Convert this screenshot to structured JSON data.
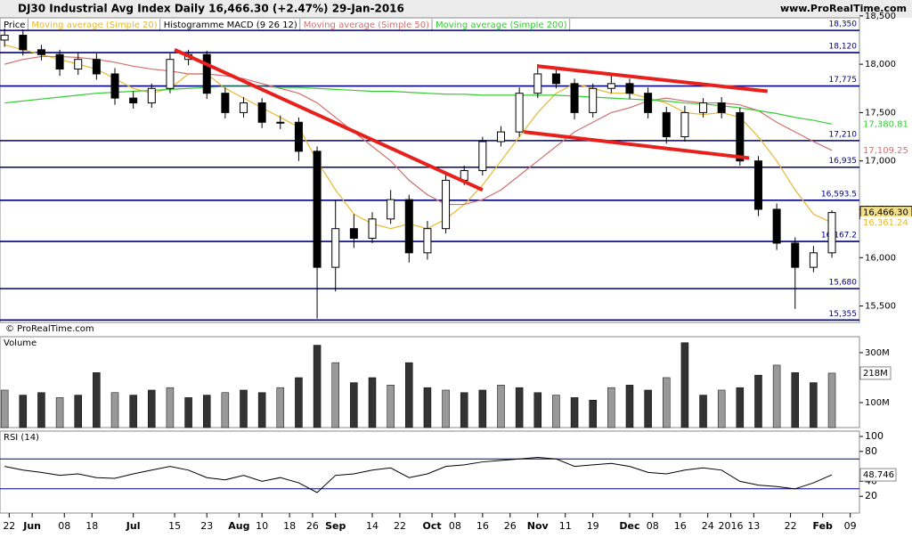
{
  "chart_data": [
    {
      "type": "candlestick",
      "title": "DJ30 Industrial Avg Index  Daily  16,466.30 (+2.47%)  29-Jan-2016",
      "site": "www.ProRealTime.com",
      "source": "© ProRealTime.com",
      "price_label": "Price",
      "macd_label": "Histogramme MACD (9 26 12)",
      "x": [
        0,
        4,
        8,
        12,
        16,
        20,
        24,
        28,
        32,
        36,
        40,
        44,
        48,
        52,
        56,
        60,
        64,
        68,
        72,
        76,
        80,
        84,
        88,
        92,
        96,
        100,
        104,
        108,
        112,
        116,
        120,
        124,
        128,
        132,
        136,
        140,
        144,
        148,
        152,
        156,
        160,
        164,
        168,
        172,
        176,
        180
      ],
      "open": [
        18250,
        18300,
        18150,
        18100,
        17950,
        18050,
        17900,
        17650,
        17600,
        17750,
        18050,
        18100,
        17700,
        17500,
        17600,
        17400,
        17400,
        17100,
        15900,
        16300,
        16200,
        16400,
        16600,
        16050,
        16300,
        16800,
        16900,
        17200,
        17300,
        17700,
        17900,
        17800,
        17500,
        17750,
        17800,
        17700,
        17500,
        17250,
        17500,
        17600,
        17500,
        17000,
        16500,
        16150,
        15900,
        16050
      ],
      "high": [
        18370,
        18360,
        18200,
        18150,
        18120,
        18110,
        17960,
        17720,
        17800,
        18110,
        18150,
        18140,
        17760,
        17660,
        17650,
        17470,
        17450,
        17150,
        16600,
        16450,
        16470,
        16700,
        16650,
        16380,
        16860,
        16950,
        17250,
        17360,
        17760,
        18000,
        17950,
        17850,
        17800,
        17880,
        17850,
        17760,
        17560,
        17570,
        17650,
        17660,
        17550,
        17050,
        16560,
        16210,
        16120,
        16490
      ],
      "low": [
        18180,
        18090,
        18040,
        17880,
        17890,
        17840,
        17580,
        17540,
        17550,
        17700,
        17990,
        17640,
        17440,
        17450,
        17340,
        17330,
        17000,
        15370,
        15650,
        16100,
        16150,
        16350,
        15950,
        15980,
        16250,
        16750,
        16850,
        17150,
        17250,
        17650,
        17750,
        17430,
        17450,
        17700,
        17640,
        17440,
        17180,
        17200,
        17450,
        17440,
        16950,
        16430,
        16080,
        15470,
        15850,
        16000
      ],
      "close": [
        18300,
        18150,
        18100,
        17950,
        18050,
        17900,
        17650,
        17600,
        17750,
        18050,
        18100,
        17700,
        17500,
        17600,
        17400,
        17400,
        17100,
        15900,
        16300,
        16200,
        16400,
        16600,
        16050,
        16300,
        16800,
        16900,
        17200,
        17300,
        17700,
        17900,
        17800,
        17500,
        17750,
        17800,
        17700,
        17500,
        17250,
        17500,
        17600,
        17500,
        17000,
        16500,
        16150,
        15900,
        16050,
        16466.3
      ],
      "series": [
        {
          "name": "Moving average (Simple 20)",
          "color": "#e8b830",
          "values": [
            18200,
            18150,
            18100,
            18050,
            18000,
            17950,
            17850,
            17750,
            17700,
            17750,
            17900,
            17900,
            17750,
            17650,
            17550,
            17450,
            17350,
            17000,
            16700,
            16450,
            16350,
            16300,
            16350,
            16300,
            16400,
            16550,
            16750,
            17000,
            17250,
            17500,
            17700,
            17800,
            17750,
            17700,
            17700,
            17650,
            17600,
            17500,
            17480,
            17500,
            17450,
            17250,
            17000,
            16700,
            16450,
            16361.24
          ]
        },
        {
          "name": "Moving average (Simple 50)",
          "color": "#d07070",
          "values": [
            18000,
            18050,
            18080,
            18080,
            18070,
            18050,
            18020,
            17980,
            17950,
            17930,
            17900,
            17900,
            17880,
            17850,
            17800,
            17750,
            17700,
            17600,
            17450,
            17300,
            17150,
            17000,
            16800,
            16650,
            16550,
            16550,
            16600,
            16700,
            16850,
            17000,
            17150,
            17300,
            17400,
            17500,
            17550,
            17620,
            17650,
            17620,
            17600,
            17600,
            17580,
            17520,
            17400,
            17300,
            17200,
            17109.25
          ]
        },
        {
          "name": "Moving average (Simple 200)",
          "color": "#33cc33",
          "values": [
            17600,
            17620,
            17640,
            17660,
            17680,
            17700,
            17710,
            17720,
            17730,
            17740,
            17750,
            17760,
            17770,
            17770,
            17770,
            17760,
            17760,
            17750,
            17740,
            17730,
            17720,
            17720,
            17710,
            17700,
            17690,
            17690,
            17680,
            17680,
            17680,
            17680,
            17680,
            17670,
            17660,
            17650,
            17640,
            17630,
            17620,
            17600,
            17590,
            17570,
            17550,
            17520,
            17490,
            17450,
            17420,
            17380.81
          ]
        }
      ],
      "levels": [
        {
          "value": 18350,
          "label": "18,350"
        },
        {
          "value": 18120,
          "label": "18,120"
        },
        {
          "value": 17775,
          "label": "17,775"
        },
        {
          "value": 17210,
          "label": "17,210"
        },
        {
          "value": 16935,
          "label": "16,935"
        },
        {
          "value": 16593.5,
          "label": "16,593.5"
        },
        {
          "value": 16167.2,
          "label": "16,167.2"
        },
        {
          "value": 15680,
          "label": "15,680"
        },
        {
          "value": 15355,
          "label": "15,355"
        }
      ],
      "trendlines": [
        {
          "x": [
            37,
            104
          ],
          "y": [
            18150,
            16700
          ]
        },
        {
          "x": [
            116,
            166
          ],
          "y": [
            17980,
            17720
          ]
        },
        {
          "x": [
            113,
            162
          ],
          "y": [
            17300,
            17030
          ]
        }
      ],
      "marker_labels": [
        {
          "value": 17380.81,
          "label": "17,380.81",
          "color": "#33cc33"
        },
        {
          "value": 17109.25,
          "label": "17,109.25",
          "color": "#d07070"
        },
        {
          "value": 16466.3,
          "label": "16,466.30",
          "color": "#000000"
        },
        {
          "value": 16361.24,
          "label": "16,361.24",
          "color": "#e8b830"
        }
      ],
      "xlim": [
        -1,
        186
      ],
      "ylim": [
        15330,
        18480
      ],
      "yticks": [
        {
          "value": 18500,
          "label": "18,500"
        },
        {
          "value": 18000,
          "label": "18,000"
        },
        {
          "value": 17500,
          "label": "17,500"
        },
        {
          "value": 17000,
          "label": "17,000"
        },
        {
          "value": 16500,
          "label": "16,500"
        },
        {
          "value": 16000,
          "label": "16,000"
        },
        {
          "value": 15500,
          "label": "15,500"
        }
      ],
      "xticks": [
        {
          "value": 1,
          "label": "22"
        },
        {
          "value": 6,
          "label": "Jun"
        },
        {
          "value": 13,
          "label": "08"
        },
        {
          "value": 19,
          "label": "18"
        },
        {
          "value": 28,
          "label": "Jul"
        },
        {
          "value": 37,
          "label": "15"
        },
        {
          "value": 44,
          "label": "23"
        },
        {
          "value": 51,
          "label": "Aug"
        },
        {
          "value": 56,
          "label": "10"
        },
        {
          "value": 62,
          "label": "18"
        },
        {
          "value": 67,
          "label": "26"
        },
        {
          "value": 72,
          "label": "Sep"
        },
        {
          "value": 80,
          "label": "14"
        },
        {
          "value": 86,
          "label": "22"
        },
        {
          "value": 93,
          "label": "Oct"
        },
        {
          "value": 98,
          "label": "08"
        },
        {
          "value": 104,
          "label": "16"
        },
        {
          "value": 110,
          "label": "26"
        },
        {
          "value": 116,
          "label": "Nov"
        },
        {
          "value": 122,
          "label": "11"
        },
        {
          "value": 128,
          "label": "19"
        },
        {
          "value": 136,
          "label": "Dec"
        },
        {
          "value": 141,
          "label": "08"
        },
        {
          "value": 147,
          "label": "16"
        },
        {
          "value": 153,
          "label": "24"
        },
        {
          "value": 158,
          "label": "2016"
        },
        {
          "value": 163,
          "label": "13"
        },
        {
          "value": 171,
          "label": "22"
        },
        {
          "value": 178,
          "label": "Feb"
        },
        {
          "value": 184,
          "label": "09"
        }
      ]
    },
    {
      "type": "bar",
      "title": "Volume",
      "x": [
        0,
        4,
        8,
        12,
        16,
        20,
        24,
        28,
        32,
        36,
        40,
        44,
        48,
        52,
        56,
        60,
        64,
        68,
        72,
        76,
        80,
        84,
        88,
        92,
        96,
        100,
        104,
        108,
        112,
        116,
        120,
        124,
        128,
        132,
        136,
        140,
        144,
        148,
        152,
        156,
        160,
        164,
        168,
        172,
        176,
        180
      ],
      "values": [
        150,
        130,
        140,
        120,
        130,
        220,
        140,
        130,
        150,
        160,
        120,
        130,
        140,
        150,
        140,
        160,
        200,
        330,
        260,
        180,
        200,
        170,
        260,
        160,
        150,
        140,
        150,
        170,
        160,
        140,
        130,
        120,
        110,
        160,
        170,
        150,
        200,
        340,
        130,
        150,
        160,
        210,
        250,
        220,
        180,
        218
      ],
      "value_labels": {
        "45": "218M"
      },
      "ylim": [
        0,
        364
      ],
      "yticks": [
        {
          "value": 300,
          "label": "300M"
        },
        {
          "value": 100,
          "label": "100M"
        }
      ]
    },
    {
      "type": "line",
      "title": "RSI (14)",
      "x": [
        0,
        4,
        8,
        12,
        16,
        20,
        24,
        28,
        32,
        36,
        40,
        44,
        48,
        52,
        56,
        60,
        64,
        68,
        72,
        76,
        80,
        84,
        88,
        92,
        96,
        100,
        104,
        108,
        112,
        116,
        120,
        124,
        128,
        132,
        136,
        140,
        144,
        148,
        152,
        156,
        160,
        164,
        168,
        172,
        176,
        180
      ],
      "values": [
        60,
        55,
        52,
        48,
        50,
        45,
        44,
        50,
        55,
        60,
        55,
        45,
        42,
        48,
        40,
        45,
        38,
        25,
        48,
        50,
        55,
        58,
        45,
        50,
        60,
        62,
        66,
        68,
        70,
        72,
        70,
        60,
        62,
        64,
        60,
        52,
        50,
        55,
        58,
        55,
        40,
        35,
        33,
        30,
        38,
        48.746
      ],
      "color": "#000000",
      "bands": [
        70,
        30
      ],
      "ylim": [
        0,
        100
      ],
      "yticks": [
        100,
        80,
        40,
        20
      ]
    }
  ]
}
